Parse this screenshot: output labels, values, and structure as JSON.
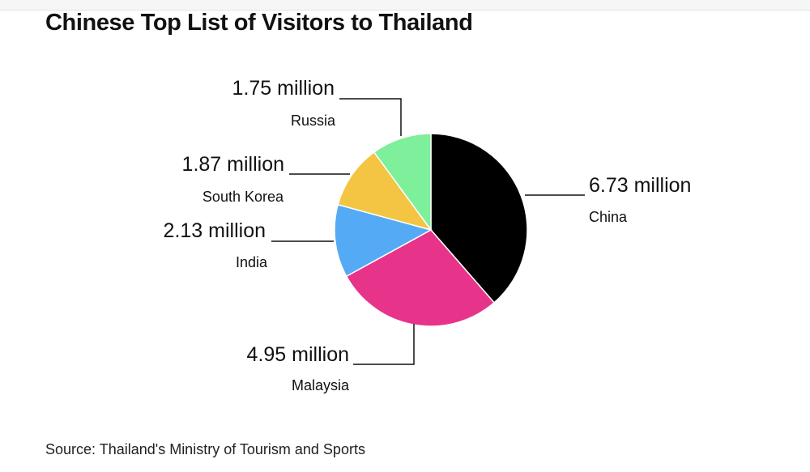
{
  "chart_data": {
    "type": "pie",
    "title": "Chinese Top List of Visitors to Thailand",
    "source": "Source: Thailand's Ministry of Tourism and Sports",
    "slices": [
      {
        "label": "China",
        "value": 6.73,
        "value_label": "6.73 million",
        "color": "#000000"
      },
      {
        "label": "Malaysia",
        "value": 4.95,
        "value_label": "4.95 million",
        "color": "#e8338b"
      },
      {
        "label": "India",
        "value": 2.13,
        "value_label": "2.13 million",
        "color": "#55aaf5"
      },
      {
        "label": "South Korea",
        "value": 1.87,
        "value_label": "1.87 million",
        "color": "#f4c542"
      },
      {
        "label": "Russia",
        "value": 1.75,
        "value_label": "1.75 million",
        "color": "#7eef9b"
      }
    ]
  }
}
